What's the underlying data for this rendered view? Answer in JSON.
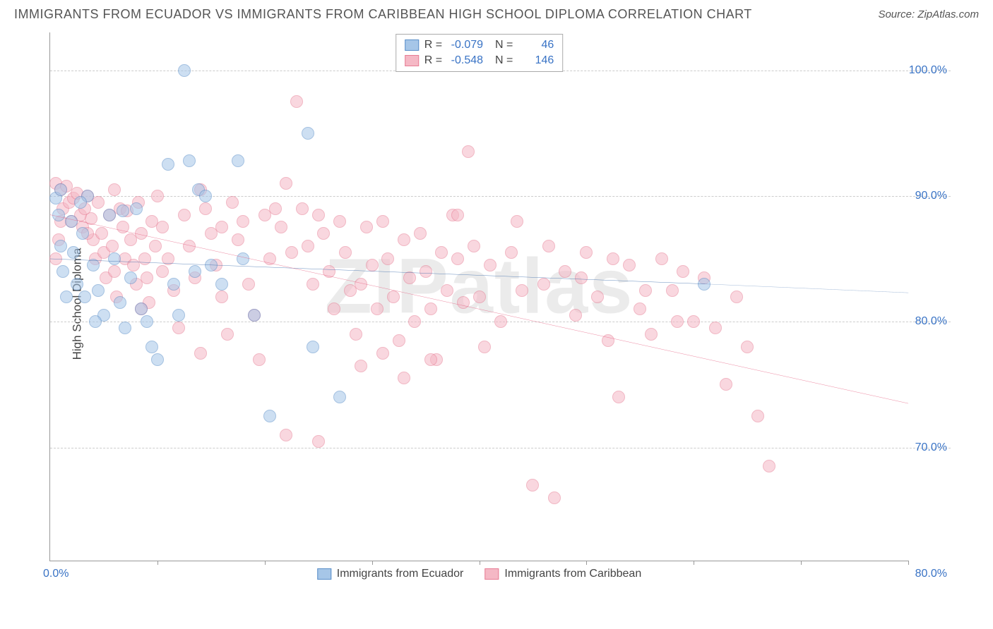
{
  "header": {
    "title": "IMMIGRANTS FROM ECUADOR VS IMMIGRANTS FROM CARIBBEAN HIGH SCHOOL DIPLOMA CORRELATION CHART",
    "source": "Source: ZipAtlas.com"
  },
  "watermark": "ZIPatlas",
  "chart": {
    "type": "scatter",
    "ylabel": "High School Diploma",
    "xlim": [
      0,
      80
    ],
    "ylim": [
      61,
      103
    ],
    "x_ticks": [
      0,
      10,
      20,
      30,
      40,
      50,
      60,
      70,
      80
    ],
    "x_tick_labels": {
      "left": "0.0%",
      "right": "80.0%"
    },
    "y_gridlines": [
      70,
      80,
      90,
      100
    ],
    "y_tick_labels": {
      "70": "70.0%",
      "80": "80.0%",
      "90": "90.0%",
      "100": "100.0%"
    },
    "background_color": "#ffffff",
    "grid_color": "#cccccc",
    "axis_color": "#999999",
    "tick_label_color": "#3973c5",
    "axis_label_color": "#444444",
    "axis_label_fontsize": 17,
    "tick_label_fontsize": 16,
    "marker_radius": 9,
    "marker_opacity": 0.55,
    "marker_stroke_width": 1.5,
    "series": [
      {
        "id": "ecuador",
        "label": "Immigrants from Ecuador",
        "fill": "#a6c6e8",
        "stroke": "#5a8fc9",
        "R": "-0.079",
        "N": "46",
        "trend": {
          "x1": 0,
          "y1": 85.0,
          "x2": 61,
          "y2": 83.0,
          "x_dash": 80,
          "y_dash": 82.3,
          "color": "#2a5fa5",
          "width": 2
        },
        "points": [
          [
            0.5,
            89.8
          ],
          [
            0.8,
            88.5
          ],
          [
            1.0,
            86.0
          ],
          [
            1.2,
            84.0
          ],
          [
            1.5,
            82.0
          ],
          [
            1.0,
            90.5
          ],
          [
            2.0,
            88.0
          ],
          [
            2.2,
            85.5
          ],
          [
            2.5,
            83.0
          ],
          [
            3.0,
            87.0
          ],
          [
            3.5,
            90.0
          ],
          [
            4.0,
            84.5
          ],
          [
            4.5,
            82.5
          ],
          [
            5.0,
            80.5
          ],
          [
            5.5,
            88.5
          ],
          [
            6.0,
            85.0
          ],
          [
            6.5,
            81.5
          ],
          [
            7.0,
            79.5
          ],
          [
            7.5,
            83.5
          ],
          [
            8.0,
            89.0
          ],
          [
            8.5,
            81.0
          ],
          [
            9.0,
            80.0
          ],
          [
            9.5,
            78.0
          ],
          [
            10.0,
            77.0
          ],
          [
            11.0,
            92.5
          ],
          [
            12.5,
            100.0
          ],
          [
            13.0,
            92.8
          ],
          [
            13.5,
            84.0
          ],
          [
            13.8,
            90.5
          ],
          [
            14.5,
            90.0
          ],
          [
            15.0,
            84.5
          ],
          [
            16.0,
            83.0
          ],
          [
            17.5,
            92.8
          ],
          [
            18.0,
            85.0
          ],
          [
            19.0,
            80.5
          ],
          [
            20.5,
            72.5
          ],
          [
            24.0,
            95.0
          ],
          [
            24.5,
            78.0
          ],
          [
            27.0,
            74.0
          ],
          [
            11.5,
            83.0
          ],
          [
            12.0,
            80.5
          ],
          [
            6.8,
            88.8
          ],
          [
            4.2,
            80.0
          ],
          [
            3.2,
            82.0
          ],
          [
            2.8,
            89.5
          ],
          [
            61.0,
            83.0
          ]
        ]
      },
      {
        "id": "caribbean",
        "label": "Immigrants from Caribbean",
        "fill": "#f5b8c5",
        "stroke": "#e77d95",
        "R": "-0.548",
        "N": "146",
        "trend": {
          "x1": 0,
          "y1": 88.5,
          "x2": 80,
          "y2": 73.5,
          "color": "#e55b7d",
          "width": 2
        },
        "points": [
          [
            0.5,
            91.0
          ],
          [
            1.0,
            90.5
          ],
          [
            1.2,
            89.0
          ],
          [
            1.5,
            90.8
          ],
          [
            1.8,
            89.5
          ],
          [
            2.0,
            88.0
          ],
          [
            2.2,
            89.8
          ],
          [
            2.5,
            90.2
          ],
          [
            2.8,
            88.5
          ],
          [
            3.0,
            87.5
          ],
          [
            3.2,
            89.0
          ],
          [
            3.5,
            90.0
          ],
          [
            3.8,
            88.2
          ],
          [
            4.0,
            86.5
          ],
          [
            4.2,
            85.0
          ],
          [
            4.5,
            89.5
          ],
          [
            4.8,
            87.0
          ],
          [
            5.0,
            85.5
          ],
          [
            5.2,
            83.5
          ],
          [
            5.5,
            88.5
          ],
          [
            5.8,
            86.0
          ],
          [
            6.0,
            84.0
          ],
          [
            6.2,
            82.0
          ],
          [
            6.5,
            89.0
          ],
          [
            6.8,
            87.5
          ],
          [
            7.0,
            85.0
          ],
          [
            7.2,
            88.8
          ],
          [
            7.5,
            86.5
          ],
          [
            7.8,
            84.5
          ],
          [
            8.0,
            83.0
          ],
          [
            8.2,
            89.5
          ],
          [
            8.5,
            87.0
          ],
          [
            8.8,
            85.0
          ],
          [
            9.0,
            83.5
          ],
          [
            9.2,
            81.5
          ],
          [
            9.5,
            88.0
          ],
          [
            9.8,
            86.0
          ],
          [
            10.0,
            90.0
          ],
          [
            10.5,
            87.5
          ],
          [
            11.0,
            85.0
          ],
          [
            11.5,
            82.5
          ],
          [
            12.0,
            79.5
          ],
          [
            12.5,
            88.5
          ],
          [
            13.0,
            86.0
          ],
          [
            13.5,
            83.5
          ],
          [
            14.0,
            77.5
          ],
          [
            14.5,
            89.0
          ],
          [
            15.0,
            87.0
          ],
          [
            15.5,
            84.5
          ],
          [
            16.0,
            82.0
          ],
          [
            16.5,
            79.0
          ],
          [
            17.0,
            89.5
          ],
          [
            17.5,
            86.5
          ],
          [
            18.0,
            88.0
          ],
          [
            18.5,
            83.0
          ],
          [
            19.0,
            80.5
          ],
          [
            19.5,
            77.0
          ],
          [
            20.0,
            88.5
          ],
          [
            20.5,
            85.0
          ],
          [
            21.0,
            89.0
          ],
          [
            21.5,
            87.5
          ],
          [
            22.0,
            91.0
          ],
          [
            22.5,
            85.5
          ],
          [
            23.0,
            97.5
          ],
          [
            23.5,
            89.0
          ],
          [
            24.0,
            86.0
          ],
          [
            24.5,
            83.0
          ],
          [
            25.0,
            88.5
          ],
          [
            25.5,
            87.0
          ],
          [
            26.0,
            84.0
          ],
          [
            26.5,
            81.0
          ],
          [
            27.0,
            88.0
          ],
          [
            27.5,
            85.5
          ],
          [
            28.0,
            82.5
          ],
          [
            28.5,
            79.0
          ],
          [
            29.0,
            76.5
          ],
          [
            29.5,
            87.5
          ],
          [
            30.0,
            84.5
          ],
          [
            30.5,
            81.0
          ],
          [
            31.0,
            77.5
          ],
          [
            31.5,
            85.0
          ],
          [
            32.0,
            82.0
          ],
          [
            32.5,
            78.5
          ],
          [
            33.0,
            86.5
          ],
          [
            33.5,
            83.5
          ],
          [
            34.0,
            80.0
          ],
          [
            34.5,
            87.0
          ],
          [
            35.0,
            84.0
          ],
          [
            35.5,
            81.0
          ],
          [
            36.0,
            77.0
          ],
          [
            36.5,
            85.5
          ],
          [
            37.0,
            82.5
          ],
          [
            37.5,
            88.5
          ],
          [
            38.0,
            85.0
          ],
          [
            38.5,
            81.5
          ],
          [
            39.0,
            93.5
          ],
          [
            39.5,
            86.0
          ],
          [
            40.0,
            82.0
          ],
          [
            41.0,
            84.5
          ],
          [
            42.0,
            80.0
          ],
          [
            43.0,
            85.5
          ],
          [
            44.0,
            82.5
          ],
          [
            45.0,
            67.0
          ],
          [
            46.0,
            83.0
          ],
          [
            47.0,
            66.0
          ],
          [
            48.0,
            84.0
          ],
          [
            49.0,
            80.5
          ],
          [
            50.0,
            85.5
          ],
          [
            51.0,
            82.0
          ],
          [
            52.0,
            78.5
          ],
          [
            53.0,
            74.0
          ],
          [
            54.0,
            84.5
          ],
          [
            55.0,
            81.0
          ],
          [
            56.0,
            79.0
          ],
          [
            57.0,
            85.0
          ],
          [
            58.0,
            82.5
          ],
          [
            59.0,
            84.0
          ],
          [
            60.0,
            80.0
          ],
          [
            61.0,
            83.5
          ],
          [
            62.0,
            79.5
          ],
          [
            63.0,
            75.0
          ],
          [
            64.0,
            82.0
          ],
          [
            65.0,
            78.0
          ],
          [
            66.0,
            72.5
          ],
          [
            67.0,
            68.5
          ],
          [
            22.0,
            71.0
          ],
          [
            25.0,
            70.5
          ],
          [
            14.0,
            90.5
          ],
          [
            16.0,
            87.5
          ],
          [
            10.5,
            84.0
          ],
          [
            8.5,
            81.0
          ],
          [
            6.0,
            90.5
          ],
          [
            3.5,
            87.0
          ],
          [
            1.0,
            88.0
          ],
          [
            0.8,
            86.5
          ],
          [
            0.5,
            85.0
          ],
          [
            29.0,
            83.0
          ],
          [
            31.0,
            88.0
          ],
          [
            33.0,
            75.5
          ],
          [
            35.5,
            77.0
          ],
          [
            38.0,
            88.5
          ],
          [
            40.5,
            78.0
          ],
          [
            43.5,
            88.0
          ],
          [
            46.5,
            86.0
          ],
          [
            49.5,
            83.5
          ],
          [
            52.5,
            85.0
          ],
          [
            55.5,
            82.5
          ],
          [
            58.5,
            80.0
          ]
        ]
      }
    ],
    "legend_bottom": [
      {
        "label": "Immigrants from Ecuador",
        "fill": "#a6c6e8",
        "stroke": "#5a8fc9"
      },
      {
        "label": "Immigrants from Caribbean",
        "fill": "#f5b8c5",
        "stroke": "#e77d95"
      }
    ]
  }
}
